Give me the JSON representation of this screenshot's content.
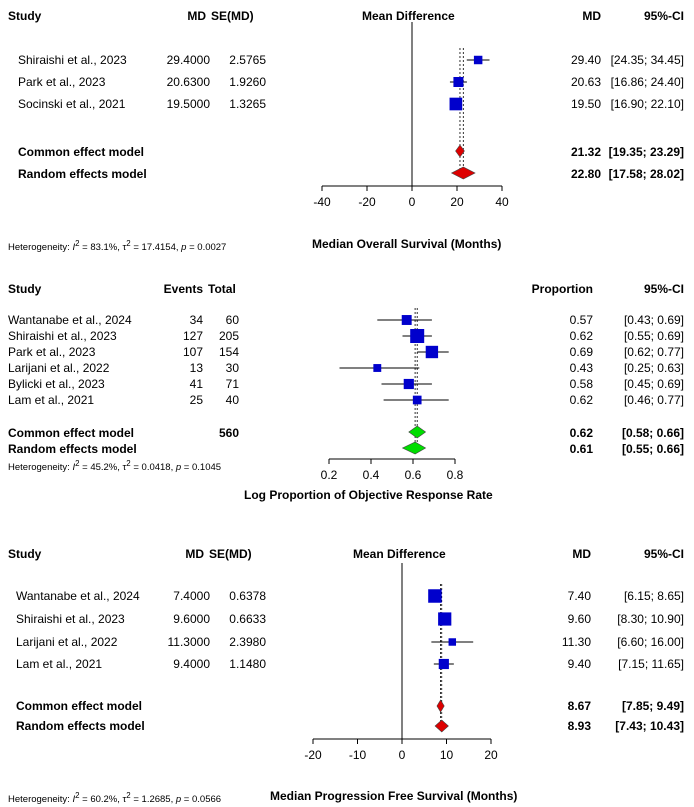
{
  "colors": {
    "study_square": "#0000cc",
    "common_diamond_1": "#dd0000",
    "common_diamond_2": "#00dd00",
    "ci_line": "#000000",
    "axis": "#000000"
  },
  "chart_data": [
    {
      "type": "forest",
      "headers": {
        "study": "Study",
        "c1": "MD",
        "c2": "SE(MD)",
        "effect": "Mean Difference",
        "est": "MD",
        "ci": "95%-CI"
      },
      "studies": [
        {
          "name": "Shiraishi et al., 2023",
          "c1": "29.4000",
          "c2": "2.5765",
          "est": 29.4,
          "lo": 24.35,
          "hi": 34.45,
          "est_text": "29.40",
          "ci_text": "[24.35; 34.45]",
          "weight": 0.2
        },
        {
          "name": "Park et al., 2023",
          "c1": "20.6300",
          "c2": "1.9260",
          "est": 20.63,
          "lo": 16.86,
          "hi": 24.4,
          "est_text": "20.63",
          "ci_text": "[16.86; 24.40]",
          "weight": 0.36
        },
        {
          "name": "Socinski et al., 2021",
          "c1": "19.5000",
          "c2": "1.3265",
          "est": 19.5,
          "lo": 16.9,
          "hi": 22.1,
          "est_text": "19.50",
          "ci_text": "[16.90; 22.10]",
          "weight": 0.75
        }
      ],
      "pooled": [
        {
          "name": "Common effect model",
          "c1": "",
          "est": 21.32,
          "lo": 19.35,
          "hi": 23.29,
          "est_text": "21.32",
          "ci_text": "[19.35; 23.29]"
        },
        {
          "name": "Random effects model",
          "c1": "",
          "est": 22.8,
          "lo": 17.58,
          "hi": 28.02,
          "est_text": "22.80",
          "ci_text": "[17.58; 28.02]"
        }
      ],
      "xlim": [
        -40,
        40
      ],
      "ticks": [
        -40,
        -20,
        0,
        20,
        40
      ],
      "ref_line": 0,
      "diamond_color": "#dd0000",
      "xlabel": "Median Overall Survival (Months)",
      "heterogeneity": {
        "prefix": "Heterogeneity: ",
        "i2": "83.1%",
        "tau2": "17.4154",
        "p": "0.0027"
      }
    },
    {
      "type": "forest",
      "headers": {
        "study": "Study",
        "c1": "Events",
        "c2": "Total",
        "effect": "",
        "est": "Proportion",
        "ci": "95%-CI"
      },
      "studies": [
        {
          "name": "Wantanabe et al., 2024",
          "c1": "34",
          "c2": "60",
          "est": 0.57,
          "lo": 0.43,
          "hi": 0.69,
          "est_text": "0.57",
          "ci_text": "[0.43; 0.69]",
          "weight": 0.35
        },
        {
          "name": "Shiraishi et al., 2023",
          "c1": "127",
          "c2": "205",
          "est": 0.62,
          "lo": 0.55,
          "hi": 0.69,
          "est_text": "0.62",
          "ci_text": "[0.55; 0.69]",
          "weight": 1.0
        },
        {
          "name": "Park et al., 2023",
          "c1": "107",
          "c2": "154",
          "est": 0.69,
          "lo": 0.62,
          "hi": 0.77,
          "est_text": "0.69",
          "ci_text": "[0.62; 0.77]",
          "weight": 0.7
        },
        {
          "name": "Larijani et al., 2022",
          "c1": "13",
          "c2": "30",
          "est": 0.43,
          "lo": 0.25,
          "hi": 0.63,
          "est_text": "0.43",
          "ci_text": "[0.25; 0.63]",
          "weight": 0.15
        },
        {
          "name": "Bylicki et al., 2023",
          "c1": "41",
          "c2": "71",
          "est": 0.58,
          "lo": 0.45,
          "hi": 0.69,
          "est_text": "0.58",
          "ci_text": "[0.45; 0.69]",
          "weight": 0.38
        },
        {
          "name": "Lam et al., 2021",
          "c1": "25",
          "c2": "40",
          "est": 0.62,
          "lo": 0.46,
          "hi": 0.77,
          "est_text": "0.62",
          "ci_text": "[0.46; 0.77]",
          "weight": 0.22
        }
      ],
      "pooled": [
        {
          "name": "Common effect model",
          "c1": "560",
          "est": 0.62,
          "lo": 0.58,
          "hi": 0.66,
          "est_text": "0.62",
          "ci_text": "[0.58; 0.66]"
        },
        {
          "name": "Random effects model",
          "c1": "",
          "est": 0.61,
          "lo": 0.55,
          "hi": 0.66,
          "est_text": "0.61",
          "ci_text": "[0.55; 0.66]"
        }
      ],
      "xlim": [
        0.2,
        0.8
      ],
      "ticks": [
        0.2,
        0.4,
        0.6,
        0.8
      ],
      "ref_line": null,
      "diamond_color": "#00dd00",
      "xlabel": "Log Proportion of Objective Response Rate",
      "heterogeneity": {
        "prefix": "Heterogeneity: ",
        "i2": "45.2%",
        "tau2": "0.0418",
        "p": "0.1045"
      }
    },
    {
      "type": "forest",
      "headers": {
        "study": "Study",
        "c1": "MD",
        "c2": "SE(MD)",
        "effect": "Mean Difference",
        "est": "MD",
        "ci": "95%-CI"
      },
      "studies": [
        {
          "name": "Wantanabe et al., 2024",
          "c1": "7.4000",
          "c2": "0.6378",
          "est": 7.4,
          "lo": 6.15,
          "hi": 8.65,
          "est_text": "7.40",
          "ci_text": "[6.15; 8.65]",
          "weight": 0.9
        },
        {
          "name": "Shiraishi et al., 2023",
          "c1": "9.6000",
          "c2": "0.6633",
          "est": 9.6,
          "lo": 8.3,
          "hi": 10.9,
          "est_text": "9.60",
          "ci_text": "[8.30; 10.90]",
          "weight": 0.85
        },
        {
          "name": "Larijani et al., 2022",
          "c1": "11.3000",
          "c2": "2.3980",
          "est": 11.3,
          "lo": 6.6,
          "hi": 16.0,
          "est_text": "11.30",
          "ci_text": "[6.60; 16.00]",
          "weight": 0.12
        },
        {
          "name": "Lam et al., 2021",
          "c1": "9.4000",
          "c2": "1.1480",
          "est": 9.4,
          "lo": 7.15,
          "hi": 11.65,
          "est_text": "9.40",
          "ci_text": "[7.15; 11.65]",
          "weight": 0.38
        }
      ],
      "pooled": [
        {
          "name": "Common effect model",
          "c1": "",
          "est": 8.67,
          "lo": 7.85,
          "hi": 9.49,
          "est_text": "8.67",
          "ci_text": "[7.85; 9.49]"
        },
        {
          "name": "Random effects model",
          "c1": "",
          "est": 8.93,
          "lo": 7.43,
          "hi": 10.43,
          "est_text": "8.93",
          "ci_text": "[7.43; 10.43]"
        }
      ],
      "xlim": [
        -20,
        20
      ],
      "ticks": [
        -20,
        -10,
        0,
        10,
        20
      ],
      "ref_line": 0,
      "diamond_color": "#dd0000",
      "xlabel": "Median Progression Free Survival (Months)",
      "heterogeneity": {
        "prefix": "Heterogeneity: ",
        "i2": "60.2%",
        "tau2": "1.2685",
        "p": "0.0566"
      }
    }
  ]
}
